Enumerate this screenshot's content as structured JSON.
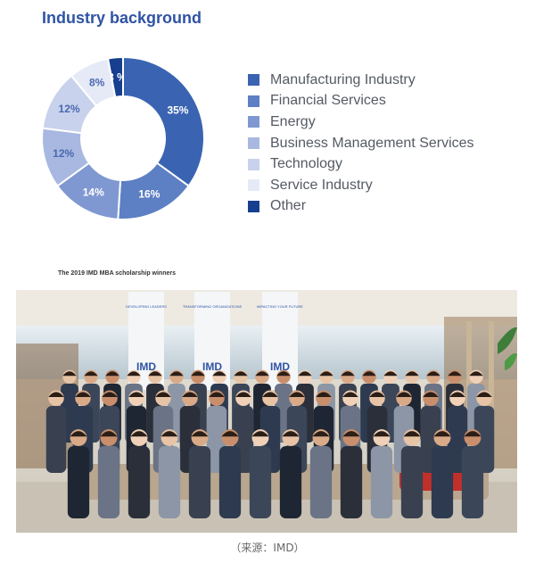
{
  "title": "Industry background",
  "chart_data": {
    "type": "pie",
    "variant": "donut",
    "categories": [
      "Manufacturing Industry",
      "Financial Services",
      "Energy",
      "Business Management Services",
      "Technology",
      "Service Industry",
      "Other"
    ],
    "values": [
      35,
      16,
      14,
      12,
      12,
      8,
      3
    ],
    "data_labels": [
      "35%",
      "16%",
      "14%",
      "12%",
      "12%",
      "8%",
      "3 %"
    ],
    "colors": [
      "#3a64b2",
      "#5d7fc4",
      "#7f98d1",
      "#a8b8e1",
      "#c8d2ec",
      "#e5eaf6",
      "#163f8f"
    ],
    "legend_position": "right"
  },
  "legend": [
    {
      "label": "Manufacturing Industry",
      "color": "#3a64b2"
    },
    {
      "label": "Financial Services",
      "color": "#5d7fc4"
    },
    {
      "label": "Energy",
      "color": "#7f98d1"
    },
    {
      "label": "Business Management Services",
      "color": "#a8b8e1"
    },
    {
      "label": "Technology",
      "color": "#c8d2ec"
    },
    {
      "label": "Service Industry",
      "color": "#e5eaf6"
    },
    {
      "label": "Other",
      "color": "#163f8f"
    }
  ],
  "photo": {
    "caption": "The 2019 IMD MBA scholarship winners",
    "banners": [
      "DEVELOPING LEADERS",
      "TRANSFORMING ORGANIZATIONS",
      "IMPACTING YOUR FUTURE"
    ],
    "logo": "IMD"
  },
  "source": "（来源：IMD）"
}
